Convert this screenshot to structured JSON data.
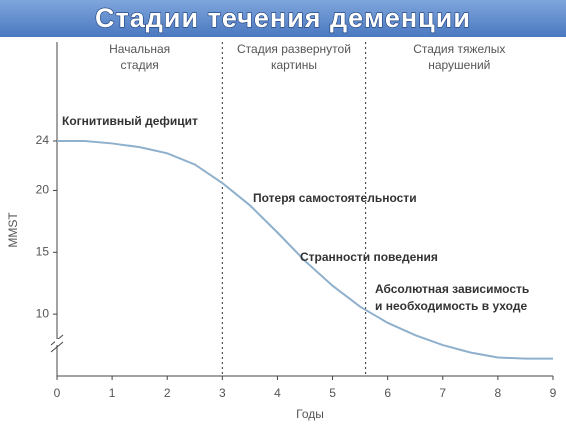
{
  "chart_data": {
    "type": "line",
    "title": "Стадии течения деменции",
    "x_label": "Годы",
    "y_label": "MMST",
    "x": [
      0,
      0.5,
      1,
      1.5,
      2,
      2.5,
      3,
      3.5,
      4,
      4.5,
      5,
      5.5,
      6,
      6.5,
      7,
      7.5,
      8,
      8.5,
      9
    ],
    "series": [
      {
        "color": "#8fb0cc",
        "values": [
          24,
          24,
          23.8,
          23.5,
          23,
          22.1,
          20.6,
          18.8,
          16.6,
          14.3,
          12.3,
          10.6,
          9.3,
          8.3,
          7.5,
          6.9,
          6.5,
          6.4,
          6.4
        ]
      }
    ],
    "xlim": [
      0,
      9
    ],
    "xticks": [
      0,
      1,
      2,
      3,
      4,
      5,
      6,
      7,
      8,
      9
    ],
    "ylim": [
      5,
      32
    ],
    "yticks": [
      10,
      15,
      20,
      24
    ],
    "stage_boundaries": [
      3,
      5.6
    ],
    "stages": [
      [
        "Начальная",
        "стадия"
      ],
      [
        "Стадия развернутой",
        "картины"
      ],
      [
        "Стадия тяжелых",
        "нарушений"
      ]
    ],
    "annotations": [
      "Когнитивный дефицит",
      "Потеря самостоятельности",
      "Странности поведения",
      "Абсолютная зависимость",
      "и необходимость в уходе"
    ]
  }
}
